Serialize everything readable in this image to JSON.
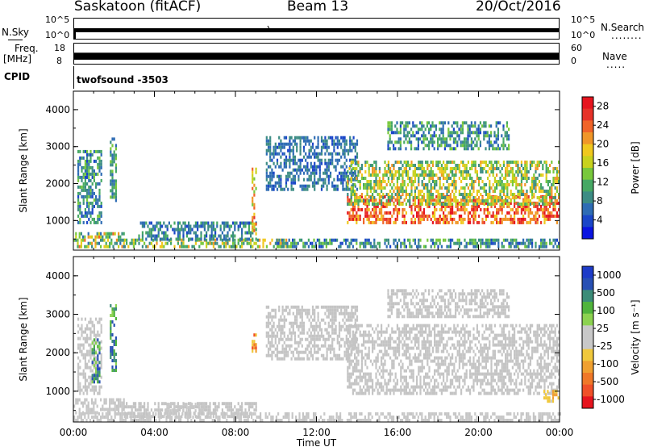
{
  "header": {
    "radar": "Saskatoon (fitACF)",
    "beam": "Beam 13",
    "date": "20/Oct/2016"
  },
  "top_panels": {
    "nsky": {
      "left_label": "N.Sky",
      "left_ticks": [
        "10^5",
        "10^0"
      ],
      "right_label": "N.Search",
      "right_ticks": [
        "10^5",
        "10^0"
      ],
      "right_legend": "........"
    },
    "freq": {
      "left_label_line1": "Freq.",
      "left_label_line2": "[MHz]",
      "left_ticks": [
        "18",
        "8"
      ],
      "right_label": "Nave",
      "right_ticks": [
        "60",
        "0"
      ],
      "right_legend": "....."
    },
    "cpid": {
      "label": "CPID",
      "value": "twofsound -3503"
    }
  },
  "colors": {
    "power": [
      "#0a14e0",
      "#1a46c8",
      "#2e6cb4",
      "#3c8c84",
      "#46a864",
      "#78c83c",
      "#c8d21e",
      "#f0c81e",
      "#f09628",
      "#f06428",
      "#e63228",
      "#e6141e"
    ],
    "velocity": [
      "#e6141e",
      "#f05028",
      "#f07828",
      "#f0a030",
      "#f0c83c",
      "#c8c8c8",
      "#c8c8c8",
      "#8cd250",
      "#50b43c",
      "#3c8c78",
      "#2850b4",
      "#1e3cc8"
    ],
    "ground": "#c4c4c4"
  },
  "chart_data": [
    {
      "type": "heatmap",
      "name": "power-panel",
      "ylabel": "Slant Range [km]",
      "ylim": [
        200,
        4500
      ],
      "yticks": [
        "1000",
        "2000",
        "3000",
        "4000"
      ],
      "xlim": [
        0,
        24
      ],
      "colorbar": {
        "label": "Power [dB]",
        "ticks": [
          "4",
          "8",
          "12",
          "16",
          "20",
          "24",
          "28"
        ],
        "range": [
          0,
          30
        ]
      },
      "regions": [
        {
          "t0": 0.2,
          "t1": 1.4,
          "r0": 900,
          "r1": 2900,
          "v0": 4,
          "v1": 14
        },
        {
          "t0": 0.0,
          "t1": 2.5,
          "r0": 250,
          "r1": 650,
          "v0": 6,
          "v1": 24
        },
        {
          "t0": 1.8,
          "t1": 2.1,
          "r0": 1500,
          "r1": 3200,
          "v0": 6,
          "v1": 14
        },
        {
          "t0": 2.5,
          "t1": 10.5,
          "r0": 250,
          "r1": 500,
          "v0": 8,
          "v1": 22
        },
        {
          "t0": 3.2,
          "t1": 9.0,
          "r0": 450,
          "r1": 900,
          "v0": 4,
          "v1": 12
        },
        {
          "t0": 8.8,
          "t1": 9.0,
          "r0": 600,
          "r1": 2400,
          "v0": 14,
          "v1": 26
        },
        {
          "t0": 9.5,
          "t1": 14.0,
          "r0": 1800,
          "r1": 3200,
          "v0": 4,
          "v1": 10
        },
        {
          "t0": 13.5,
          "t1": 24.0,
          "r0": 900,
          "r1": 1600,
          "v0": 18,
          "v1": 30
        },
        {
          "t0": 13.5,
          "t1": 24.0,
          "r0": 1400,
          "r1": 2600,
          "v0": 8,
          "v1": 22
        },
        {
          "t0": 15.5,
          "t1": 21.5,
          "r0": 2900,
          "r1": 3600,
          "v0": 4,
          "v1": 14
        },
        {
          "t0": 10.0,
          "t1": 24.0,
          "r0": 250,
          "r1": 500,
          "v0": 4,
          "v1": 14
        }
      ]
    },
    {
      "type": "heatmap",
      "name": "velocity-panel",
      "ylabel": "Slant Range [km]",
      "ylim": [
        200,
        4500
      ],
      "yticks": [
        "1000",
        "2000",
        "3000",
        "4000"
      ],
      "xlim": [
        0,
        24
      ],
      "xticks": [
        "00:00",
        "04:00",
        "08:00",
        "12:00",
        "16:00",
        "20:00",
        "00:00"
      ],
      "xlabel": "Time UT",
      "colorbar": {
        "label": "Velocity [m s⁻¹]",
        "ticks": [
          "1000",
          "500",
          "100",
          "25",
          "-25",
          "-100",
          "-500",
          "-1000"
        ],
        "range": [
          -1200,
          1200
        ]
      },
      "regions": [
        {
          "t0": 0.2,
          "t1": 1.4,
          "r0": 900,
          "r1": 2900,
          "v0": -30,
          "v1": 30
        },
        {
          "t0": 0.9,
          "t1": 1.3,
          "r0": 1200,
          "r1": 2300,
          "v0": 200,
          "v1": 1100
        },
        {
          "t0": 0.0,
          "t1": 2.5,
          "r0": 400,
          "r1": 800,
          "v0": -20,
          "v1": 150
        },
        {
          "t0": 1.8,
          "t1": 2.1,
          "r0": 1500,
          "r1": 3200,
          "v0": 300,
          "v1": 1000
        },
        {
          "t0": 2.5,
          "t1": 9.0,
          "r0": 300,
          "r1": 700,
          "v0": -20,
          "v1": 20
        },
        {
          "t0": 4.5,
          "t1": 6.5,
          "r0": 450,
          "r1": 650,
          "v0": 80,
          "v1": 200
        },
        {
          "t0": 8.8,
          "t1": 9.0,
          "r0": 2000,
          "r1": 2500,
          "v0": -900,
          "v1": -300
        },
        {
          "t0": 9.5,
          "t1": 14.0,
          "r0": 1800,
          "r1": 3200,
          "v0": -20,
          "v1": 20
        },
        {
          "t0": 13.5,
          "t1": 24.0,
          "r0": 900,
          "r1": 2700,
          "v0": -20,
          "v1": 20
        },
        {
          "t0": 15.5,
          "t1": 21.5,
          "r0": 2900,
          "r1": 3600,
          "v0": -20,
          "v1": 20
        },
        {
          "t0": 0.0,
          "t1": 24.0,
          "r0": 200,
          "r1": 450,
          "v0": -200,
          "v1": 20
        },
        {
          "t0": 23.2,
          "t1": 24.0,
          "r0": 700,
          "r1": 1000,
          "v0": -500,
          "v1": -150
        }
      ]
    }
  ]
}
